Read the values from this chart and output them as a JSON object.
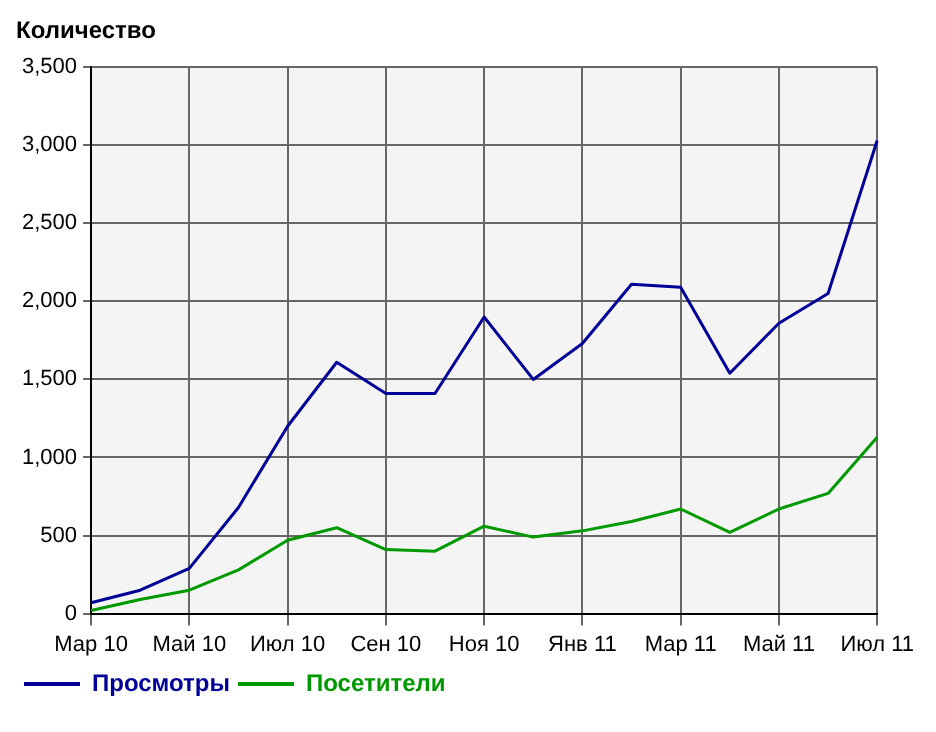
{
  "chart_data": {
    "type": "line",
    "ylabel": "Количество",
    "categories": [
      "Мар 10",
      null,
      "Май 10",
      null,
      "Июл 10",
      null,
      "Сен 10",
      null,
      "Ноя 10",
      null,
      "Янв 11",
      null,
      "Мар 11",
      null,
      "Май 11",
      null,
      "Июл 11"
    ],
    "series": [
      {
        "name": "Просмотры",
        "color": "#000099",
        "values": [
          70,
          150,
          290,
          680,
          1200,
          1610,
          1410,
          1410,
          1900,
          1500,
          1730,
          2110,
          2090,
          1540,
          1860,
          2050,
          3030
        ]
      },
      {
        "name": "Посетители",
        "color": "#009900",
        "values": [
          20,
          90,
          150,
          280,
          470,
          550,
          410,
          400,
          560,
          490,
          530,
          590,
          670,
          520,
          670,
          770,
          1130
        ]
      }
    ],
    "ylim": [
      0,
      3500
    ],
    "yticks": [
      0,
      {
        "value": 500,
        "label": "500"
      },
      {
        "value": 1000,
        "label": "1,000"
      },
      {
        "value": 1500,
        "label": "1,500"
      },
      {
        "value": 2000,
        "label": "2,000"
      },
      {
        "value": 2500,
        "label": "2,500"
      },
      {
        "value": 3000,
        "label": "3,000"
      },
      {
        "value": 3500,
        "label": "3,500"
      }
    ],
    "grid": true,
    "legend": "bottom left",
    "marker": "none",
    "line_style": "solid"
  }
}
